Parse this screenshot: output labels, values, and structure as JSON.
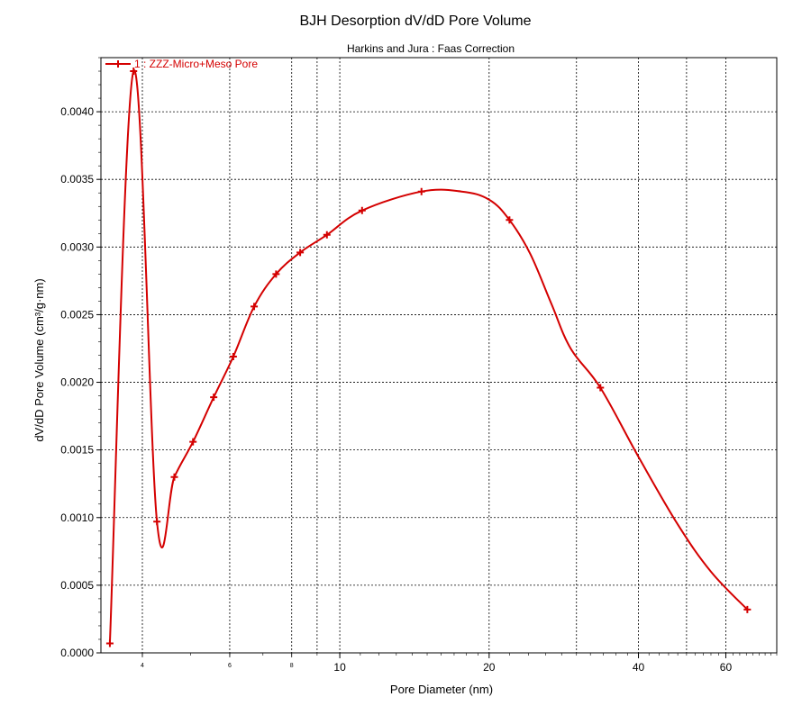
{
  "chart_data": {
    "type": "line",
    "title": "BJH Desorption dV/dD Pore Volume",
    "subtitle": "Harkins and Jura : Faas Correction",
    "xlabel": "Pore Diameter (nm)",
    "ylabel": "dV/dD Pore Volume (cm³/g·nm)",
    "x_scale": "log",
    "xlim": [
      3.3,
      76
    ],
    "ylim": [
      0,
      0.0044
    ],
    "grid": true,
    "legend_position": "top-left",
    "y_ticks": [
      "0.0000",
      "0.0005",
      "0.0010",
      "0.0015",
      "0.0020",
      "0.0025",
      "0.0030",
      "0.0035",
      "0.0040"
    ],
    "y_tick_values": [
      0,
      0.0005,
      0.001,
      0.0015,
      0.002,
      0.0025,
      0.003,
      0.0035,
      0.004
    ],
    "x_ticks_major": [
      {
        "value": 10,
        "label": "10"
      },
      {
        "value": 20,
        "label": "20"
      },
      {
        "value": 40,
        "label": "40"
      },
      {
        "value": 60,
        "label": "60"
      }
    ],
    "x_ticks_minor": [
      {
        "value": 4,
        "label": "4"
      },
      {
        "value": 6,
        "label": "6"
      },
      {
        "value": 8,
        "label": "8"
      }
    ],
    "x_grid_values": [
      4,
      6,
      8,
      9,
      10,
      20,
      30,
      40,
      50,
      60
    ],
    "series": [
      {
        "name": "1 : ZZZ-Micro+Meso Pore",
        "color": "#d40000",
        "x": [
          3.44,
          3.84,
          4.28,
          4.64,
          5.06,
          5.57,
          6.1,
          6.72,
          7.44,
          8.32,
          9.42,
          11.09,
          14.61,
          17.6,
          20.0,
          21.98,
          24.2,
          26.7,
          29.2,
          33.52,
          40.0,
          48.0,
          56.0,
          66.3
        ],
        "y": [
          7e-05,
          0.0043,
          0.00097,
          0.0013,
          0.00156,
          0.00189,
          0.00219,
          0.00256,
          0.0028,
          0.00296,
          0.00309,
          0.00327,
          0.00341,
          0.00341,
          0.00335,
          0.0032,
          0.00295,
          0.00258,
          0.00225,
          0.00196,
          0.00145,
          0.00095,
          0.0006,
          0.00032
        ],
        "markers": [
          true,
          true,
          true,
          true,
          true,
          true,
          true,
          true,
          true,
          true,
          true,
          true,
          true,
          false,
          false,
          true,
          false,
          false,
          false,
          true,
          false,
          false,
          false,
          true
        ]
      }
    ]
  }
}
